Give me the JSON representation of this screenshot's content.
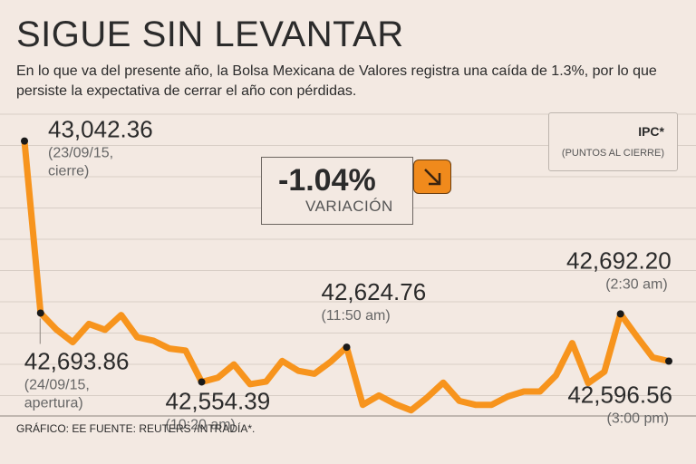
{
  "header": {
    "title": "SIGUE SIN LEVANTAR",
    "subtitle": "En lo que va del presente año, la Bolsa Mexicana de Valores registra una caída de 1.3%, por lo que persiste la expectativa de cerrar el año con pérdidas."
  },
  "legend": {
    "title": "IPC*",
    "subtitle": "(PUNTOS AL CIERRE)"
  },
  "variation": {
    "value": "-1.04%",
    "label": "VARIACIÓN",
    "icon": "arrow-down-right-icon"
  },
  "footer": {
    "source": "GRÁFICO: EE  FUENTE: REUTERS /INTRADÍA*."
  },
  "colors": {
    "line": "#f7941d",
    "point": "#1a1a1a",
    "background": "#f3e9e2",
    "grid": "#d8cec6",
    "arrow_box": "#f08a1c"
  },
  "chart_data": {
    "type": "line",
    "title": "SIGUE SIN LEVANTAR",
    "xlabel": "",
    "ylabel": "",
    "ylim": [
      42480,
      43060
    ],
    "grid": true,
    "series": [
      {
        "name": "IPC",
        "values": [
          43042.36,
          42693.86,
          42660,
          42635,
          42672,
          42660,
          42690,
          42645,
          42638,
          42622,
          42618,
          42554.39,
          42563,
          42590,
          42550,
          42555,
          42597,
          42577,
          42571,
          42595,
          42624.76,
          42508,
          42527,
          42510,
          42497,
          42523,
          42553,
          42516,
          42508,
          42508,
          42525,
          42535,
          42535,
          42568,
          42633,
          42552,
          42575,
          42692.2,
          42647,
          42604,
          42596.56
        ]
      }
    ],
    "annotations": [
      {
        "index": 0,
        "value": "43,042.36",
        "label": "(23/09/15,",
        "label2": "cierre)"
      },
      {
        "index": 1,
        "value": "42,693.86",
        "label": "(24/09/15,",
        "label2": "apertura)"
      },
      {
        "index": 11,
        "value": "42,554.39",
        "label": "(10:20 am)",
        "label2": ""
      },
      {
        "index": 20,
        "value": "42,624.76",
        "label": "(11:50 am)",
        "label2": ""
      },
      {
        "index": 37,
        "value": "42,692.20",
        "label": "(2:30 am)",
        "label2": ""
      },
      {
        "index": 40,
        "value": "42,596.56",
        "label": "(3:00 pm)",
        "label2": ""
      }
    ]
  }
}
